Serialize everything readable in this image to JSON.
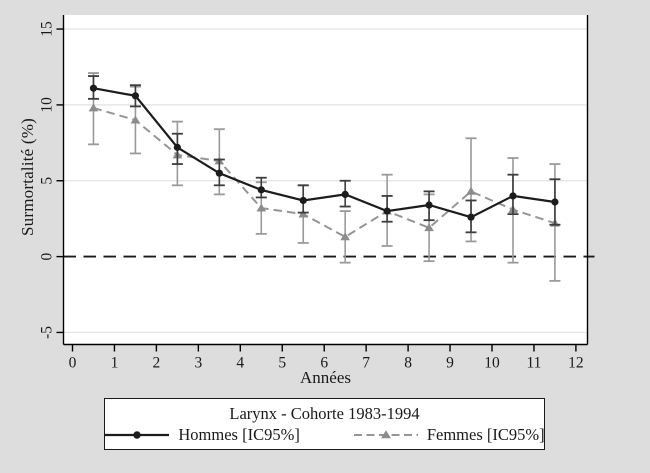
{
  "figure": {
    "background_color": "#dddddd",
    "plot_background_color": "#ffffff",
    "gridline_color": "#e2e2e2",
    "axis_color": "#000000",
    "zero_line_color": "#1a1a1a"
  },
  "chart_data": {
    "type": "line",
    "title": "Larynx - Cohorte 1983-1994",
    "xlabel": "Années",
    "ylabel": "Surmortalité (%)",
    "xlim": [
      0,
      12
    ],
    "ylim": [
      -5.9,
      15.9
    ],
    "x_ticks": [
      "0",
      "1",
      "2",
      "3",
      "4",
      "5",
      "6",
      "7",
      "8",
      "9",
      "10",
      "11",
      "12"
    ],
    "y_ticks": [
      "-5",
      "0",
      "5",
      "10",
      "15"
    ],
    "y_tick_values": [
      -5,
      0,
      5,
      10,
      15
    ],
    "x_tick_values": [
      0,
      1,
      2,
      3,
      4,
      5,
      6,
      7,
      8,
      9,
      10,
      11,
      12
    ],
    "grid": true,
    "reference_line_y": 0,
    "x": [
      0.5,
      1.5,
      2.5,
      3.5,
      4.5,
      5.5,
      6.5,
      7.5,
      8.5,
      9.5,
      10.5,
      11.5
    ],
    "series": [
      {
        "name": "Hommes [IC95%]",
        "marker": "circle",
        "line_style": "solid",
        "line_color": "#1c1c1c",
        "error_color": "#3d3d3d",
        "values": [
          11.1,
          10.6,
          7.2,
          5.5,
          4.4,
          3.7,
          4.1,
          3.0,
          3.4,
          2.6,
          4.0,
          3.6
        ],
        "ci_low": [
          10.4,
          9.9,
          6.1,
          4.7,
          3.9,
          2.9,
          3.3,
          2.3,
          2.4,
          1.6,
          2.8,
          2.1
        ],
        "ci_high": [
          11.9,
          11.3,
          8.1,
          6.4,
          5.2,
          4.7,
          5.0,
          4.0,
          4.3,
          3.7,
          5.4,
          5.1
        ]
      },
      {
        "name": "Femmes [IC95%]",
        "marker": "triangle",
        "line_style": "dashed",
        "line_color": "#959595",
        "error_color": "#9a9a9a",
        "values": [
          9.8,
          9.0,
          6.7,
          6.3,
          3.2,
          2.8,
          1.3,
          3.0,
          1.9,
          4.3,
          3.1,
          2.2
        ],
        "ci_low": [
          7.4,
          6.8,
          4.7,
          4.1,
          1.5,
          0.9,
          -0.4,
          0.7,
          -0.3,
          1.0,
          -0.4,
          -1.6
        ],
        "ci_high": [
          12.1,
          11.2,
          8.9,
          8.4,
          4.9,
          4.7,
          3.0,
          5.4,
          4.1,
          7.8,
          6.5,
          6.1
        ]
      }
    ],
    "legend": {
      "position": "bottom",
      "title": "Larynx - Cohorte 1983-1994",
      "entries": [
        "Hommes [IC95%]",
        "Femmes [IC95%]"
      ]
    }
  }
}
